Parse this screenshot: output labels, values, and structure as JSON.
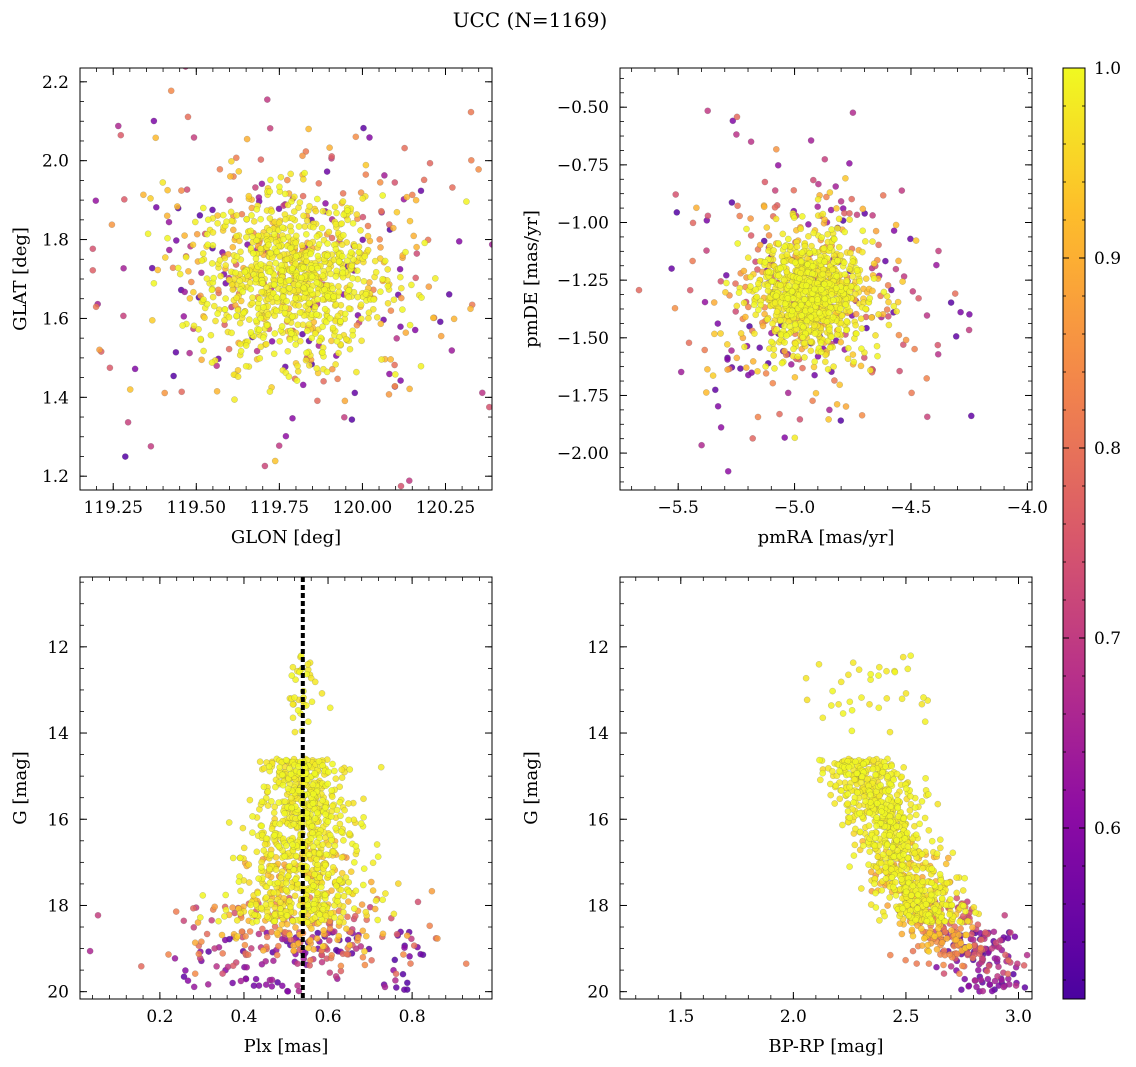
{
  "figure": {
    "title": "UCC (N=1169)",
    "colorbar": {
      "label": "",
      "range": [
        0.51,
        1.0
      ],
      "ticks": [
        "0.6",
        "0.7",
        "0.8",
        "0.9",
        "1.0"
      ],
      "cmap": "plasma"
    }
  },
  "chart_data": [
    {
      "type": "scatter",
      "name": "glon-glat",
      "title": "",
      "xlabel": "GLON [deg]",
      "ylabel": "GLAT [deg]",
      "xlim": [
        119.15,
        120.39
      ],
      "ylim": [
        1.165,
        2.235
      ],
      "invert_y": false,
      "xticks": [
        "119.25",
        "119.50",
        "119.75",
        "120.00",
        "120.25"
      ],
      "yticks": [
        "1.2",
        "1.4",
        "1.6",
        "1.8",
        "2.0",
        "2.2"
      ],
      "n_points": 1169,
      "color_by": "membership probability"
    },
    {
      "type": "scatter",
      "name": "pmra-pmde",
      "title": "",
      "xlabel": "pmRA [mas/yr]",
      "ylabel": "pmDE [mas/yr]",
      "xlim": [
        -5.75,
        -3.98
      ],
      "ylim": [
        -2.16,
        -0.33
      ],
      "invert_y": false,
      "xticks": [
        "−5.5",
        "−5.0",
        "−4.5",
        "−4.0"
      ],
      "yticks": [
        "−2.00",
        "−1.75",
        "−1.50",
        "−1.25",
        "−1.00",
        "−0.75",
        "−0.50"
      ],
      "n_points": 1169,
      "color_by": "membership probability"
    },
    {
      "type": "scatter",
      "name": "plx-g",
      "title": "",
      "xlabel": "Plx [mas]",
      "ylabel": "G [mag]",
      "xlim": [
        0.01,
        0.99
      ],
      "ylim": [
        20.17,
        10.38
      ],
      "invert_y": true,
      "xticks": [
        "0.2",
        "0.4",
        "0.6",
        "0.8"
      ],
      "yticks": [
        "12",
        "14",
        "16",
        "18",
        "20"
      ],
      "vline": 0.54,
      "n_points": 1169,
      "color_by": "membership probability"
    },
    {
      "type": "scatter",
      "name": "bprp-g",
      "title": "",
      "xlabel": "BP-RP [mag]",
      "ylabel": "G [mag]",
      "xlim": [
        1.23,
        3.06
      ],
      "ylim": [
        20.17,
        10.38
      ],
      "invert_y": true,
      "xticks": [
        "1.5",
        "2.0",
        "2.5",
        "3.0"
      ],
      "yticks": [
        "12",
        "14",
        "16",
        "18",
        "20"
      ],
      "n_points": 1169,
      "color_by": "membership probability"
    }
  ]
}
